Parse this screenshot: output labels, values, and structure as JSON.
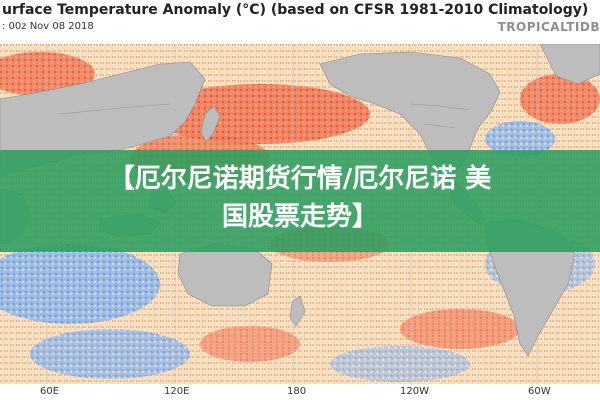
{
  "map": {
    "title": "urface Temperature Anomaly (°C) (based on CFSR 1981-2010 Climatology)",
    "subtitle": ": 00z Nov 08 2018",
    "brand": "TROPICALTIDB",
    "longitude_ticks": [
      "60E",
      "120E",
      "180",
      "120W",
      "60W"
    ]
  },
  "banner": {
    "line1": "【厄尔尼诺期货行情/厄尔尼诺 美",
    "line2": "国股票走势】"
  },
  "colors": {
    "warm_anomaly": "#e8453c",
    "warm_light": "#f6a86b",
    "cool_anomaly": "#3c7bd8",
    "land": "#bdbdbd",
    "banner": "#2c9e5f"
  }
}
